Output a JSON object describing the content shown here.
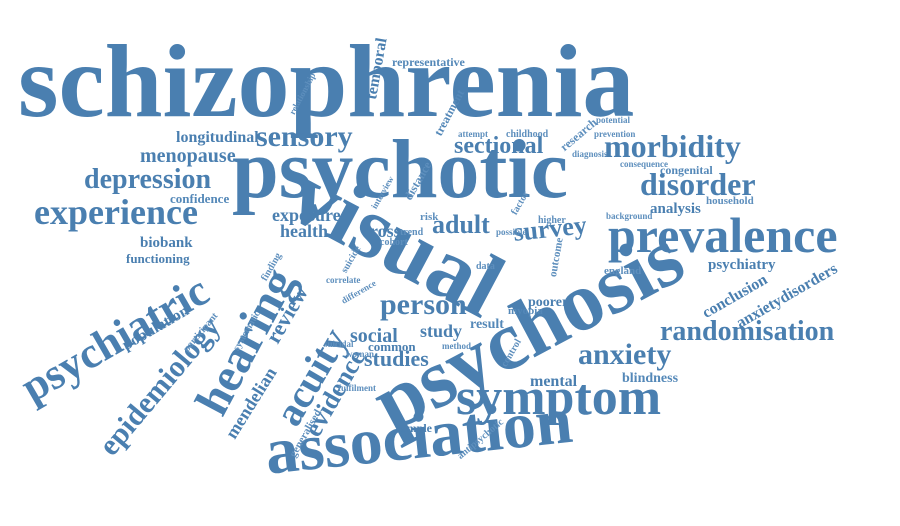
{
  "words": [
    "schizophrenia",
    "psychotic",
    "visual",
    "psychosis",
    "association",
    "symptom",
    "prevalence",
    "hearing",
    "psychiatric",
    "experience",
    "acuity",
    "disorder",
    "morbidity",
    "sensory",
    "depression",
    "anxiety",
    "randomisation",
    "person",
    "epidemiology",
    "evidence",
    "adult",
    "survey",
    "sectional",
    "menopause",
    "longitudinal",
    "exposure",
    "health",
    "studies",
    "review",
    "mendelian",
    "population",
    "biobank",
    "functioning",
    "confidence",
    "psychiatry",
    "conclusion",
    "anxietydisorders",
    "mental",
    "blindness",
    "england",
    "analysis",
    "household",
    "congenital",
    "consequence",
    "prevention",
    "potential",
    "representative",
    "temporal",
    "relationship",
    "treatment",
    "research",
    "childhood",
    "attempt",
    "cross",
    "social",
    "study",
    "result",
    "myopia",
    "poorer",
    "common",
    "sample",
    "antipsychotic",
    "generalised",
    "fulfilment",
    "systematic",
    "finding",
    "participant",
    "suicidal",
    "woman",
    "method",
    "control",
    "outcome",
    "data",
    "suicide",
    "risk",
    "trend",
    "cohort",
    "correlate",
    "difference",
    "factor",
    "higher",
    "possible",
    "background",
    "diagnosis",
    "distance",
    "interview"
  ],
  "colors": {
    "primary": "#4a7fb0",
    "background": "#ffffff"
  }
}
